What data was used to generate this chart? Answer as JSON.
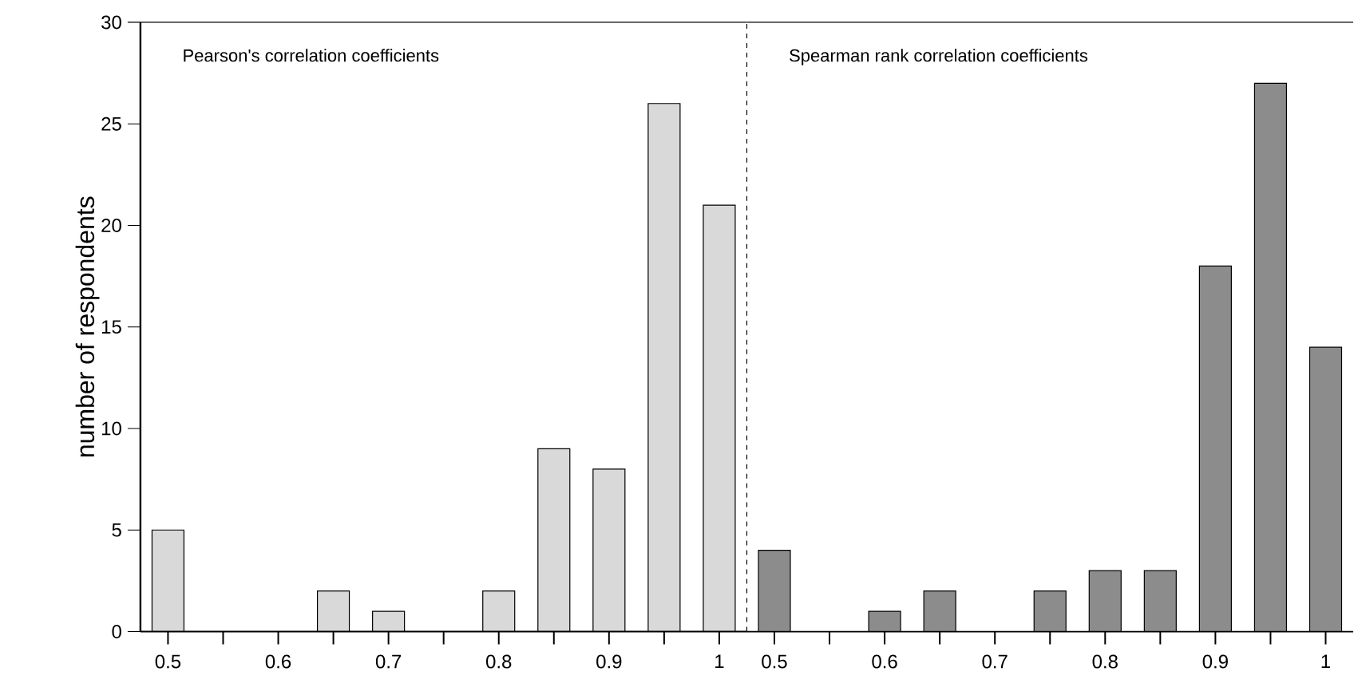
{
  "chart_data": [
    {
      "type": "bar",
      "title": "Pearson's correlation coefficients",
      "ylabel": "number of respondents",
      "categories": [
        "0.5",
        null,
        "0.6",
        null,
        "0.7",
        null,
        "0.8",
        null,
        "0.9",
        null,
        "1"
      ],
      "values": [
        5,
        0,
        0,
        2,
        1,
        0,
        2,
        9,
        8,
        26,
        21
      ],
      "color": "#d9d9d9",
      "ylim": [
        0,
        30
      ],
      "yticks": [
        0,
        5,
        10,
        15,
        20,
        25,
        30
      ]
    },
    {
      "type": "bar",
      "title": "Spearman rank correlation coefficients",
      "categories": [
        "0.5",
        null,
        "0.6",
        null,
        "0.7",
        null,
        "0.8",
        null,
        "0.9",
        null,
        "1"
      ],
      "values": [
        4,
        0,
        1,
        2,
        0,
        2,
        3,
        3,
        18,
        27,
        14
      ],
      "color": "#8c8c8c",
      "ylim": [
        0,
        30
      ],
      "yticks": [
        0,
        5,
        10,
        15,
        20,
        25,
        30
      ],
      "tick_labels": "x"
    }
  ]
}
